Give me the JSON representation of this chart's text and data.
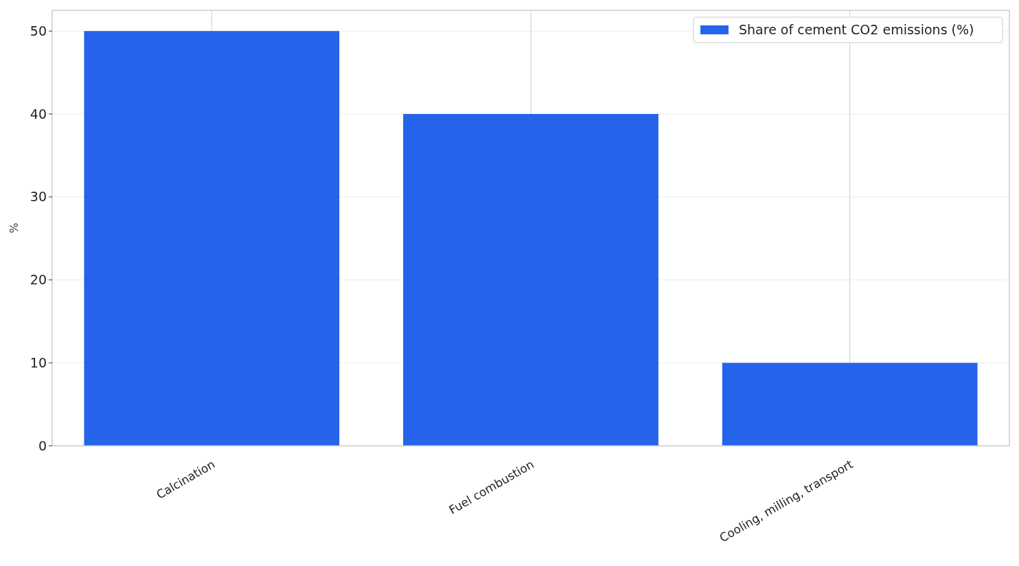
{
  "chart_data": {
    "type": "bar",
    "ylabel": "%",
    "categories": [
      "Calcination",
      "Fuel combustion",
      "Cooling, milling, transport"
    ],
    "series": [
      {
        "name": "Share of cement CO2 emissions (%)",
        "color": "#2563eb",
        "values": [
          50,
          40,
          10
        ]
      }
    ],
    "ylim": [
      0,
      52.5
    ],
    "yticks": [
      0,
      10,
      20,
      30,
      40,
      50
    ],
    "grid": true,
    "legend": "top right"
  }
}
